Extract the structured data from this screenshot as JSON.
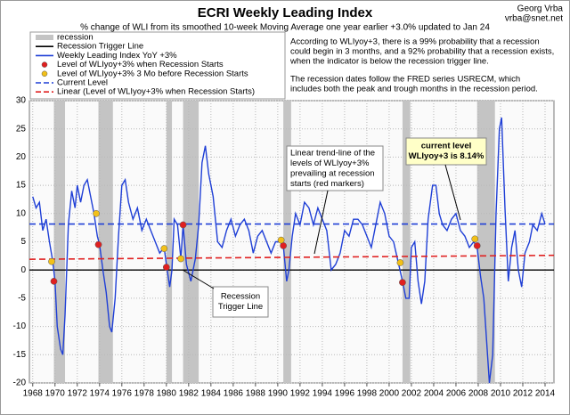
{
  "chart_data": {
    "type": "line",
    "title": "ECRI Weekly Leading Index",
    "subtitle": "% change of WLI from its smoothed 10-week Moving Average one year earlier +3.0% updated to Jan 24",
    "author": "Georg Vrba",
    "email": "vrba@snet.net",
    "info": [
      [
        "According to WLIyoy+3, there is a 99% probability that a recession",
        "could begin in 3 months, and a 92% probability that a recession exists,",
        "when the indicator is below the recession trigger line."
      ],
      [
        "The recession dates follow the FRED series USRECM, which",
        "includes both the peak and trough months in the recession period."
      ]
    ],
    "annotations": {
      "trend_note": [
        "Linear trend-line of the",
        "levels of WLIyoy+3%",
        "prevailing at recession",
        "starts (red markers)"
      ],
      "trigger_note": [
        "Recession",
        "Trigger Line"
      ],
      "current_note": [
        "current level",
        "WLIyoy+3 is 8.14%"
      ]
    },
    "xlim": [
      1967.7,
      2014.8
    ],
    "xticks": [
      1968,
      1970,
      1972,
      1974,
      1976,
      1978,
      1980,
      1982,
      1984,
      1986,
      1988,
      1990,
      1992,
      1994,
      1996,
      1998,
      2000,
      2002,
      2004,
      2006,
      2008,
      2010,
      2012,
      2014
    ],
    "ylim": [
      -20,
      30
    ],
    "yticks": [
      -20,
      -15,
      -10,
      -5,
      0,
      5,
      10,
      15,
      20,
      25,
      30
    ],
    "grid": true,
    "recessions": {
      "name": "recession",
      "color": "#c4c4c4",
      "spans": [
        [
          1969.9,
          1970.9
        ],
        [
          1973.9,
          1975.2
        ],
        [
          1980.0,
          1980.5
        ],
        [
          1981.5,
          1982.9
        ],
        [
          1990.5,
          1991.2
        ],
        [
          2001.2,
          2001.9
        ],
        [
          2007.9,
          2009.5
        ]
      ]
    },
    "series": [
      {
        "name": "Recession Trigger Line",
        "color": "#000000",
        "style": "line",
        "x": [
          1967.7,
          2014.8
        ],
        "values": [
          0,
          0
        ]
      },
      {
        "name": "Weekly Leading Index YoY +3%",
        "color": "#1f3fd6",
        "style": "line",
        "x": [
          1968.0,
          1968.3,
          1968.6,
          1968.9,
          1969.2,
          1969.5,
          1969.8,
          1970.0,
          1970.2,
          1970.5,
          1970.7,
          1970.9,
          1971.2,
          1971.5,
          1971.8,
          1972.0,
          1972.3,
          1972.6,
          1972.9,
          1973.2,
          1973.5,
          1973.8,
          1974.0,
          1974.3,
          1974.6,
          1974.9,
          1975.1,
          1975.4,
          1975.7,
          1976.0,
          1976.3,
          1976.6,
          1977.0,
          1977.4,
          1977.8,
          1978.2,
          1978.6,
          1979.0,
          1979.4,
          1979.8,
          1980.0,
          1980.3,
          1980.5,
          1980.7,
          1981.0,
          1981.3,
          1981.5,
          1981.8,
          1982.2,
          1982.6,
          1982.9,
          1983.2,
          1983.5,
          1983.8,
          1984.2,
          1984.6,
          1985.0,
          1985.4,
          1985.8,
          1986.2,
          1986.6,
          1987.0,
          1987.4,
          1987.8,
          1988.2,
          1988.6,
          1989.0,
          1989.4,
          1989.8,
          1990.2,
          1990.5,
          1990.8,
          1991.0,
          1991.3,
          1991.6,
          1992.0,
          1992.4,
          1992.8,
          1993.2,
          1993.6,
          1994.0,
          1994.4,
          1994.8,
          1995.2,
          1995.6,
          1996.0,
          1996.4,
          1996.8,
          1997.2,
          1997.6,
          1998.0,
          1998.4,
          1998.8,
          1999.2,
          1999.6,
          2000.0,
          2000.4,
          2000.8,
          2001.2,
          2001.5,
          2001.8,
          2002.0,
          2002.3,
          2002.6,
          2002.9,
          2003.2,
          2003.5,
          2003.9,
          2004.2,
          2004.5,
          2004.8,
          2005.2,
          2005.6,
          2006.0,
          2006.4,
          2006.8,
          2007.2,
          2007.6,
          2007.9,
          2008.2,
          2008.5,
          2008.8,
          2009.0,
          2009.3,
          2009.6,
          2009.9,
          2010.1,
          2010.4,
          2010.7,
          2011.0,
          2011.3,
          2011.6,
          2011.9,
          2012.2,
          2012.6,
          2012.9,
          2013.3,
          2013.7,
          2014.0
        ],
        "values": [
          13,
          11,
          12,
          7,
          9,
          5,
          1.5,
          -2,
          -10,
          -14,
          -15,
          -8,
          8,
          14,
          11,
          15,
          12,
          15,
          16,
          13,
          10,
          6,
          4.5,
          0,
          -4,
          -10,
          -11,
          -5,
          6,
          15,
          16,
          12,
          9,
          11,
          7,
          9,
          7,
          5,
          3,
          4,
          1,
          -3,
          0,
          9,
          8,
          2,
          8,
          1,
          -2,
          2,
          8,
          19,
          22,
          17,
          13,
          5,
          4,
          7,
          9,
          6,
          8,
          9,
          7,
          3,
          6,
          7,
          5,
          3,
          5,
          5,
          4.3,
          -2,
          0,
          6,
          10,
          8,
          12,
          11,
          8,
          11,
          9,
          7,
          0,
          1,
          3,
          7,
          6,
          9,
          9,
          8,
          6,
          4,
          8,
          12,
          10,
          6,
          5,
          1.5,
          -2,
          -5,
          -5,
          4,
          5,
          -2,
          -6,
          -2,
          9,
          15,
          15,
          10,
          8,
          7,
          9,
          10,
          7,
          6,
          4,
          5,
          4,
          -1,
          -5,
          -14,
          -20,
          -15,
          10,
          25,
          27,
          11,
          -2,
          4,
          7,
          0,
          -3,
          3,
          5,
          8,
          7,
          10,
          8.14
        ]
      },
      {
        "name": "Level of WLIyoy+3% when Recession Starts",
        "color": "#e02020",
        "style": "marker",
        "x": [
          1969.9,
          1973.9,
          1980.0,
          1981.5,
          1990.5,
          2001.2,
          2007.9
        ],
        "values": [
          -2,
          4.5,
          0.5,
          8,
          4.3,
          -2.2,
          4.3
        ]
      },
      {
        "name": "Level of WLIyoy+3% 3 Mo before Recession Starts",
        "color": "#f2c018",
        "style": "marker",
        "x": [
          1969.7,
          1973.7,
          1979.8,
          1981.3,
          1990.3,
          2001.0,
          2007.7
        ],
        "values": [
          1.5,
          10,
          3.8,
          2,
          5.3,
          1.3,
          5.5
        ]
      },
      {
        "name": "Current Level",
        "color": "#1f3fd6",
        "style": "dashed",
        "x": [
          1967.7,
          2014.8
        ],
        "values": [
          8.14,
          8.14
        ]
      },
      {
        "name": "Linear (Level of WLIyoy+3% when Recession Starts)",
        "color": "#e02020",
        "style": "dashed",
        "x": [
          1967.7,
          2014.8
        ],
        "values": [
          1.9,
          2.6
        ]
      }
    ]
  }
}
